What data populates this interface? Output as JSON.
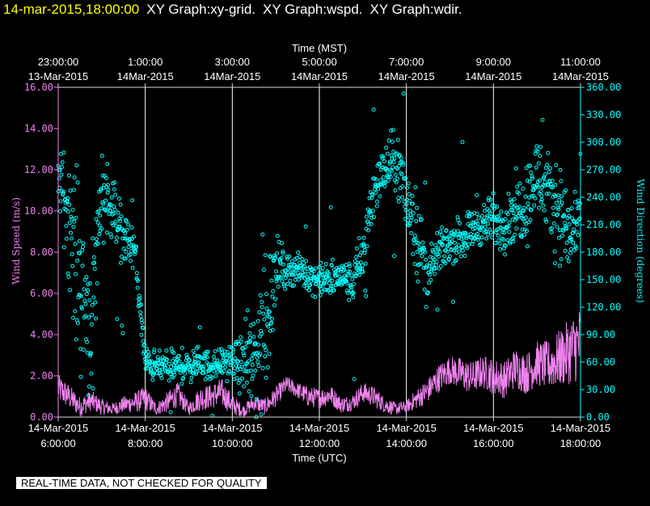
{
  "header": {
    "timestamp": "14-mar-2015,18:00:00",
    "graphs": [
      "XY Graph:xy-grid.",
      "XY Graph:wspd.",
      "XY Graph:wdir."
    ]
  },
  "notice": "REAL-TIME DATA, NOT CHECKED FOR QUALITY",
  "colors": {
    "background": "#000000",
    "wind_speed": "#ee82ee",
    "wind_direction": "#00ffff",
    "grid": "#ffffff",
    "axis": "#d8d8d8"
  },
  "chart_data": {
    "type": "line",
    "top_axis": {
      "title": "Time (MST)",
      "ticks": [
        {
          "time": "23:00:00",
          "date": "13-Mar-2015"
        },
        {
          "time": "1:00:00",
          "date": "14Mar-2015"
        },
        {
          "time": "3:00:00",
          "date": "14Mar-2015"
        },
        {
          "time": "5:00:00",
          "date": "14Mar-2015"
        },
        {
          "time": "7:00:00",
          "date": "14Mar-2015"
        },
        {
          "time": "9:00:00",
          "date": "14Mar-2015"
        },
        {
          "time": "11:00:00",
          "date": "14Mar-2015"
        }
      ]
    },
    "bottom_axis": {
      "title": "Time (UTC)",
      "ticks": [
        {
          "date": "14-Mar-2015",
          "time": "6:00:00"
        },
        {
          "date": "14-Mar-2015",
          "time": "8:00:00"
        },
        {
          "date": "14-Mar-2015",
          "time": "10:00:00"
        },
        {
          "date": "14-Mar-2015",
          "time": "12:00:00"
        },
        {
          "date": "14-Mar-2015",
          "time": "14:00:00"
        },
        {
          "date": "14-Mar-2015",
          "time": "16:00:00"
        },
        {
          "date": "14-Mar-2015",
          "time": "18:00:00"
        }
      ],
      "range_hours_utc": [
        6,
        18
      ]
    },
    "left_axis": {
      "title": "Wind Speed (m/s)",
      "ylim": [
        0,
        16
      ],
      "ticks": [
        "0.00",
        "2.00",
        "4.00",
        "6.00",
        "8.00",
        "10.00",
        "12.00",
        "14.00",
        "16.00"
      ]
    },
    "right_axis": {
      "title": "Wind Direction (degrees)",
      "ylim": [
        0,
        360
      ],
      "ticks": [
        "0.00",
        "30.00",
        "60.00",
        "90.00",
        "120.00",
        "150.00",
        "180.00",
        "210.00",
        "240.00",
        "270.00",
        "300.00",
        "330.00",
        "360.00"
      ]
    },
    "grid": "vertical lines at bottom-axis ticks",
    "series": [
      {
        "key": "wspd",
        "axis": "left",
        "style": "line",
        "color": "#ee82ee",
        "x_hours_utc": [
          6.0,
          6.25,
          6.5,
          6.75,
          7.0,
          7.25,
          7.5,
          7.75,
          8.0,
          8.25,
          8.5,
          8.75,
          9.0,
          9.25,
          9.5,
          9.75,
          10.0,
          10.25,
          10.5,
          10.75,
          11.0,
          11.25,
          11.5,
          11.75,
          12.0,
          12.25,
          12.5,
          12.75,
          13.0,
          13.25,
          13.5,
          13.75,
          14.0,
          14.25,
          14.5,
          14.75,
          15.0,
          15.25,
          15.5,
          15.75,
          16.0,
          16.25,
          16.5,
          16.75,
          17.0,
          17.25,
          17.5,
          17.75,
          18.0
        ],
        "values": [
          1.4,
          1.0,
          0.5,
          0.8,
          0.5,
          0.4,
          0.6,
          0.7,
          0.9,
          0.4,
          0.7,
          1.1,
          0.4,
          0.9,
          1.0,
          1.2,
          0.6,
          0.3,
          0.7,
          0.5,
          1.0,
          1.6,
          1.3,
          1.0,
          0.9,
          1.1,
          0.6,
          0.7,
          1.2,
          1.0,
          0.6,
          0.4,
          0.5,
          0.9,
          1.3,
          1.9,
          2.3,
          2.1,
          1.9,
          2.2,
          2.0,
          1.8,
          2.4,
          2.1,
          2.6,
          2.5,
          2.8,
          3.2,
          3.6
        ],
        "spread": [
          0.7,
          0.6,
          0.5,
          0.5,
          0.4,
          0.3,
          0.4,
          0.5,
          0.6,
          0.3,
          0.5,
          0.6,
          0.3,
          0.6,
          0.6,
          0.7,
          0.5,
          0.3,
          0.4,
          0.4,
          0.5,
          0.4,
          0.4,
          0.5,
          0.5,
          0.5,
          0.4,
          0.4,
          0.5,
          0.5,
          0.4,
          0.3,
          0.3,
          0.5,
          0.6,
          0.7,
          0.7,
          0.8,
          0.8,
          0.8,
          0.9,
          0.9,
          1.0,
          1.0,
          1.1,
          1.2,
          1.4,
          1.6,
          1.9
        ]
      },
      {
        "key": "wdir",
        "axis": "right",
        "style": "markers",
        "color": "#00ffff",
        "x_hours_utc": [
          6.0,
          6.25,
          6.5,
          6.75,
          7.0,
          7.25,
          7.5,
          7.75,
          8.0,
          8.25,
          8.5,
          8.75,
          9.0,
          9.25,
          9.5,
          9.75,
          10.0,
          10.25,
          10.5,
          10.75,
          11.0,
          11.25,
          11.5,
          11.75,
          12.0,
          12.25,
          12.5,
          12.75,
          13.0,
          13.25,
          13.5,
          13.75,
          14.0,
          14.25,
          14.5,
          14.75,
          15.0,
          15.25,
          15.5,
          15.75,
          16.0,
          16.25,
          16.5,
          16.75,
          17.0,
          17.25,
          17.5,
          17.75,
          18.0
        ],
        "values": [
          265,
          220,
          150,
          100,
          250,
          230,
          195,
          185,
          60,
          55,
          55,
          55,
          55,
          60,
          55,
          60,
          60,
          58,
          60,
          100,
          165,
          160,
          162,
          155,
          150,
          148,
          155,
          145,
          175,
          250,
          270,
          280,
          240,
          200,
          155,
          180,
          190,
          195,
          205,
          210,
          215,
          210,
          225,
          235,
          265,
          240,
          230,
          195,
          225
        ],
        "spread": [
          25,
          60,
          90,
          70,
          45,
          30,
          25,
          20,
          15,
          15,
          15,
          15,
          15,
          15,
          15,
          15,
          15,
          30,
          60,
          90,
          30,
          15,
          15,
          15,
          15,
          20,
          15,
          20,
          30,
          25,
          25,
          30,
          40,
          40,
          20,
          20,
          20,
          20,
          20,
          20,
          25,
          25,
          30,
          40,
          40,
          40,
          45,
          45,
          40
        ]
      }
    ]
  }
}
